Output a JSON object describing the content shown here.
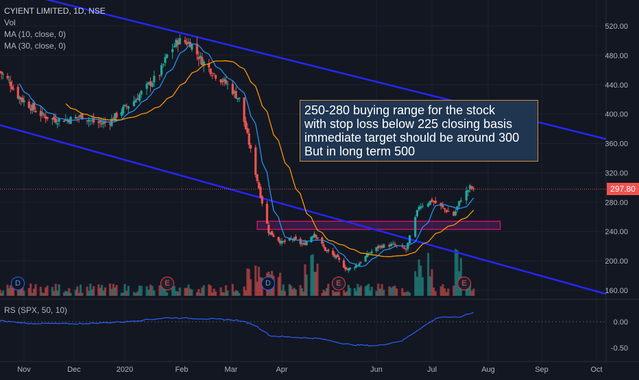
{
  "legend": {
    "title": "CYIENT LIMITED, 1D, NSE",
    "vol": "Vol",
    "ma10": "MA (10, close, 0)",
    "ma30": "MA (30, close, 0)"
  },
  "rs_legend": "RS (SPX, 50, 10)",
  "annotation": {
    "lines": [
      "250-280 buying range for the stock",
      "with stop loss below 225 closing basis",
      "immediate target should be around 300",
      "But in long term 500"
    ]
  },
  "last_price": "297.80",
  "events": [
    {
      "label": "D",
      "kind": "dividend",
      "date": "2019-11-01"
    },
    {
      "label": "E",
      "kind": "earnings",
      "date": "2020-01-23"
    },
    {
      "label": "D",
      "kind": "dividend",
      "date": "2020-03-17"
    },
    {
      "label": "E",
      "kind": "earnings",
      "date": "2020-04-21"
    },
    {
      "label": "E",
      "kind": "earnings",
      "date": "2020-07-16"
    }
  ],
  "colors": {
    "background": "#131722",
    "up": "#26a69a",
    "down": "#ef5350",
    "ma10": "#2196f3",
    "ma30": "#ff9800",
    "channel": "#2626ff",
    "rs_line": "#2962ff",
    "zone": "#9c27b0",
    "annotation_bg": "#1f3550",
    "annotation_border": "#d98a3a",
    "price_tag": "#ef5350",
    "axis_text": "#b2b5be"
  },
  "chart_data": [
    {
      "type": "candlestick",
      "title": "CYIENT LIMITED, 1D, NSE",
      "x_ticks": [
        "Nov",
        "Dec",
        "2020",
        "Feb",
        "Mar",
        "Apr",
        "Jun",
        "Jul",
        "Aug",
        "Sep",
        "Oct"
      ],
      "y_ticks": [
        "520.00",
        "480.00",
        "440.00",
        "400.00",
        "360.00",
        "320.00",
        "280.00",
        "240.00",
        "200.00",
        "160.00"
      ],
      "ylim": [
        150,
        535
      ],
      "last_price": 297.8,
      "close_anchors": [
        [
          "2019-10-16",
          458
        ],
        [
          "2019-10-22",
          445
        ],
        [
          "2019-10-28",
          425
        ],
        [
          "2019-11-04",
          412
        ],
        [
          "2019-11-12",
          398
        ],
        [
          "2019-11-20",
          392
        ],
        [
          "2019-11-28",
          393
        ],
        [
          "2019-12-06",
          397
        ],
        [
          "2019-12-14",
          388
        ],
        [
          "2019-12-22",
          388
        ],
        [
          "2019-12-30",
          405
        ],
        [
          "2020-01-06",
          418
        ],
        [
          "2020-01-14",
          440
        ],
        [
          "2020-01-20",
          455
        ],
        [
          "2020-01-24",
          480
        ],
        [
          "2020-01-30",
          500
        ],
        [
          "2020-02-06",
          497
        ],
        [
          "2020-02-12",
          475
        ],
        [
          "2020-02-20",
          455
        ],
        [
          "2020-02-28",
          440
        ],
        [
          "2020-03-06",
          420
        ],
        [
          "2020-03-12",
          360
        ],
        [
          "2020-03-18",
          300
        ],
        [
          "2020-03-24",
          240
        ],
        [
          "2020-04-01",
          225
        ],
        [
          "2020-04-08",
          230
        ],
        [
          "2020-04-15",
          222
        ],
        [
          "2020-04-22",
          238
        ],
        [
          "2020-04-29",
          215
        ],
        [
          "2020-05-06",
          205
        ],
        [
          "2020-05-13",
          188
        ],
        [
          "2020-05-20",
          195
        ],
        [
          "2020-05-27",
          210
        ],
        [
          "2020-06-03",
          220
        ],
        [
          "2020-06-10",
          222
        ],
        [
          "2020-06-17",
          215
        ],
        [
          "2020-06-24",
          275
        ],
        [
          "2020-07-01",
          282
        ],
        [
          "2020-07-08",
          270
        ],
        [
          "2020-07-13",
          262
        ],
        [
          "2020-07-17",
          285
        ],
        [
          "2020-07-22",
          300
        ],
        [
          "2020-07-24",
          297.8
        ]
      ],
      "channel_upper": {
        "start": [
          "2019-10-16",
          572
        ],
        "end": [
          "2020-10-05",
          366
        ]
      },
      "channel_lower": {
        "start": [
          "2019-10-16",
          385
        ],
        "end": [
          "2020-10-05",
          155
        ]
      },
      "zone": {
        "from": "2020-03-17",
        "to": "2020-08-08",
        "low": 243,
        "high": 254
      },
      "series": [
        {
          "name": "MA (10, close, 0)",
          "color": "#2196f3"
        },
        {
          "name": "MA (30, close, 0)",
          "color": "#ff9800"
        }
      ]
    },
    {
      "type": "line",
      "title": "RS (SPX, 50, 10)",
      "y_ticks": [
        "0.00",
        "-0.50"
      ],
      "ylim": [
        -0.62,
        0.25
      ],
      "series": [
        {
          "name": "RS (SPX, 50, 10)",
          "points": [
            [
              "2019-10-16",
              0.02
            ],
            [
              "2019-11-04",
              -0.03
            ],
            [
              "2019-12-01",
              -0.04
            ],
            [
              "2020-01-01",
              0.0
            ],
            [
              "2020-01-25",
              0.08
            ],
            [
              "2020-02-15",
              0.06
            ],
            [
              "2020-03-05",
              0.03
            ],
            [
              "2020-03-15",
              -0.05
            ],
            [
              "2020-03-25",
              -0.27
            ],
            [
              "2020-04-10",
              -0.3
            ],
            [
              "2020-04-25",
              -0.32
            ],
            [
              "2020-05-15",
              -0.44
            ],
            [
              "2020-06-01",
              -0.46
            ],
            [
              "2020-06-15",
              -0.36
            ],
            [
              "2020-06-25",
              -0.12
            ],
            [
              "2020-07-05",
              0.1
            ],
            [
              "2020-07-15",
              0.08
            ],
            [
              "2020-07-24",
              0.18
            ]
          ]
        }
      ]
    }
  ]
}
